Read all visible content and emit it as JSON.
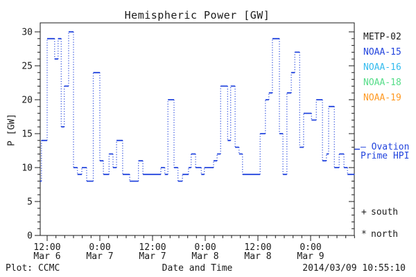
{
  "window": {
    "title": "Hemispheric Power [GW]"
  },
  "colors": {
    "background": "#ffffff",
    "axis": "#1a1a1a",
    "hpi_line": "#2244dd",
    "metp02": "#1a1a1a",
    "noaa15": "#2244dd",
    "noaa16": "#33bbee",
    "noaa18": "#55dd88",
    "noaa19": "#ff9922"
  },
  "chart_data": {
    "type": "line",
    "subtype": "dotted-step",
    "title": "Hemispheric Power [GW]",
    "xlabel": "Date and Time",
    "ylabel": "P [GW]",
    "ylim": [
      0,
      30
    ],
    "y_major_ticks": [
      0,
      5,
      10,
      15,
      20,
      25,
      30
    ],
    "y_minor_step": 1,
    "grid": false,
    "x_hours_range": [
      10.4,
      82.0
    ],
    "x_hours_epoch": "hours since 2014 Mar 6 00:00 UT",
    "x_minor_step_hours": 2,
    "x_major_ticks": [
      {
        "hour": 12,
        "time": "12:00",
        "date": "Mar 6"
      },
      {
        "hour": 24,
        "time": "0:00",
        "date": "Mar 7"
      },
      {
        "hour": 36,
        "time": "12:00",
        "date": "Mar 7"
      },
      {
        "hour": 48,
        "time": "0:00",
        "date": "Mar 8"
      },
      {
        "hour": 60,
        "time": "12:00",
        "date": "Mar 8"
      },
      {
        "hour": 72,
        "time": "0:00",
        "date": "Mar 9"
      }
    ],
    "series": [
      {
        "name": "Ovation Prime HPI",
        "color": "#2244dd",
        "line_style": "dotted-step",
        "points_hour_gw": [
          [
            10.4,
            8
          ],
          [
            10.7,
            14
          ],
          [
            12.0,
            29
          ],
          [
            13.7,
            26
          ],
          [
            14.5,
            29
          ],
          [
            15.2,
            16
          ],
          [
            15.9,
            22
          ],
          [
            16.9,
            30
          ],
          [
            18.0,
            10
          ],
          [
            18.9,
            9
          ],
          [
            19.9,
            10
          ],
          [
            21.0,
            8
          ],
          [
            22.5,
            24
          ],
          [
            24.0,
            11
          ],
          [
            24.8,
            9
          ],
          [
            26.1,
            12
          ],
          [
            27.0,
            10
          ],
          [
            27.8,
            14
          ],
          [
            29.2,
            9
          ],
          [
            30.8,
            8
          ],
          [
            32.8,
            11
          ],
          [
            33.8,
            9
          ],
          [
            37.9,
            10
          ],
          [
            38.8,
            9
          ],
          [
            39.5,
            20
          ],
          [
            40.9,
            10
          ],
          [
            41.8,
            8
          ],
          [
            42.8,
            9
          ],
          [
            44.2,
            10
          ],
          [
            44.8,
            12
          ],
          [
            45.8,
            10
          ],
          [
            47.1,
            9
          ],
          [
            47.8,
            10
          ],
          [
            49.9,
            11
          ],
          [
            50.7,
            12
          ],
          [
            51.5,
            22
          ],
          [
            53.1,
            14
          ],
          [
            53.8,
            22
          ],
          [
            54.8,
            13
          ],
          [
            55.7,
            12
          ],
          [
            56.5,
            9
          ],
          [
            60.5,
            15
          ],
          [
            61.7,
            20
          ],
          [
            62.5,
            21
          ],
          [
            63.3,
            29
          ],
          [
            64.9,
            15
          ],
          [
            65.7,
            9
          ],
          [
            66.6,
            21
          ],
          [
            67.6,
            24
          ],
          [
            68.4,
            27
          ],
          [
            69.5,
            13
          ],
          [
            70.4,
            18
          ],
          [
            72.2,
            17
          ],
          [
            73.3,
            20
          ],
          [
            74.7,
            11
          ],
          [
            75.6,
            12
          ],
          [
            76.1,
            19
          ],
          [
            77.4,
            10
          ],
          [
            78.5,
            12
          ],
          [
            79.6,
            10
          ],
          [
            80.4,
            9
          ],
          [
            82.0,
            9
          ]
        ]
      }
    ],
    "legend_position": "right"
  },
  "legend": {
    "satellites": [
      {
        "label": "METP-02",
        "color": "#1a1a1a"
      },
      {
        "label": "NOAA-15",
        "color": "#2244dd"
      },
      {
        "label": "NOAA-16",
        "color": "#33bbee"
      },
      {
        "label": "NOAA-18",
        "color": "#55dd88"
      },
      {
        "label": "NOAA-19",
        "color": "#ff9922"
      }
    ],
    "line_label": "– Ovation\nPrime HPI",
    "markers": [
      {
        "symbol": "+",
        "label": "south"
      },
      {
        "symbol": "*",
        "label": "north"
      }
    ]
  },
  "footer": {
    "left": "Plot: CCMC",
    "xlabel": "Date and Time",
    "timestamp": "2014/03/09 10:55:10"
  }
}
